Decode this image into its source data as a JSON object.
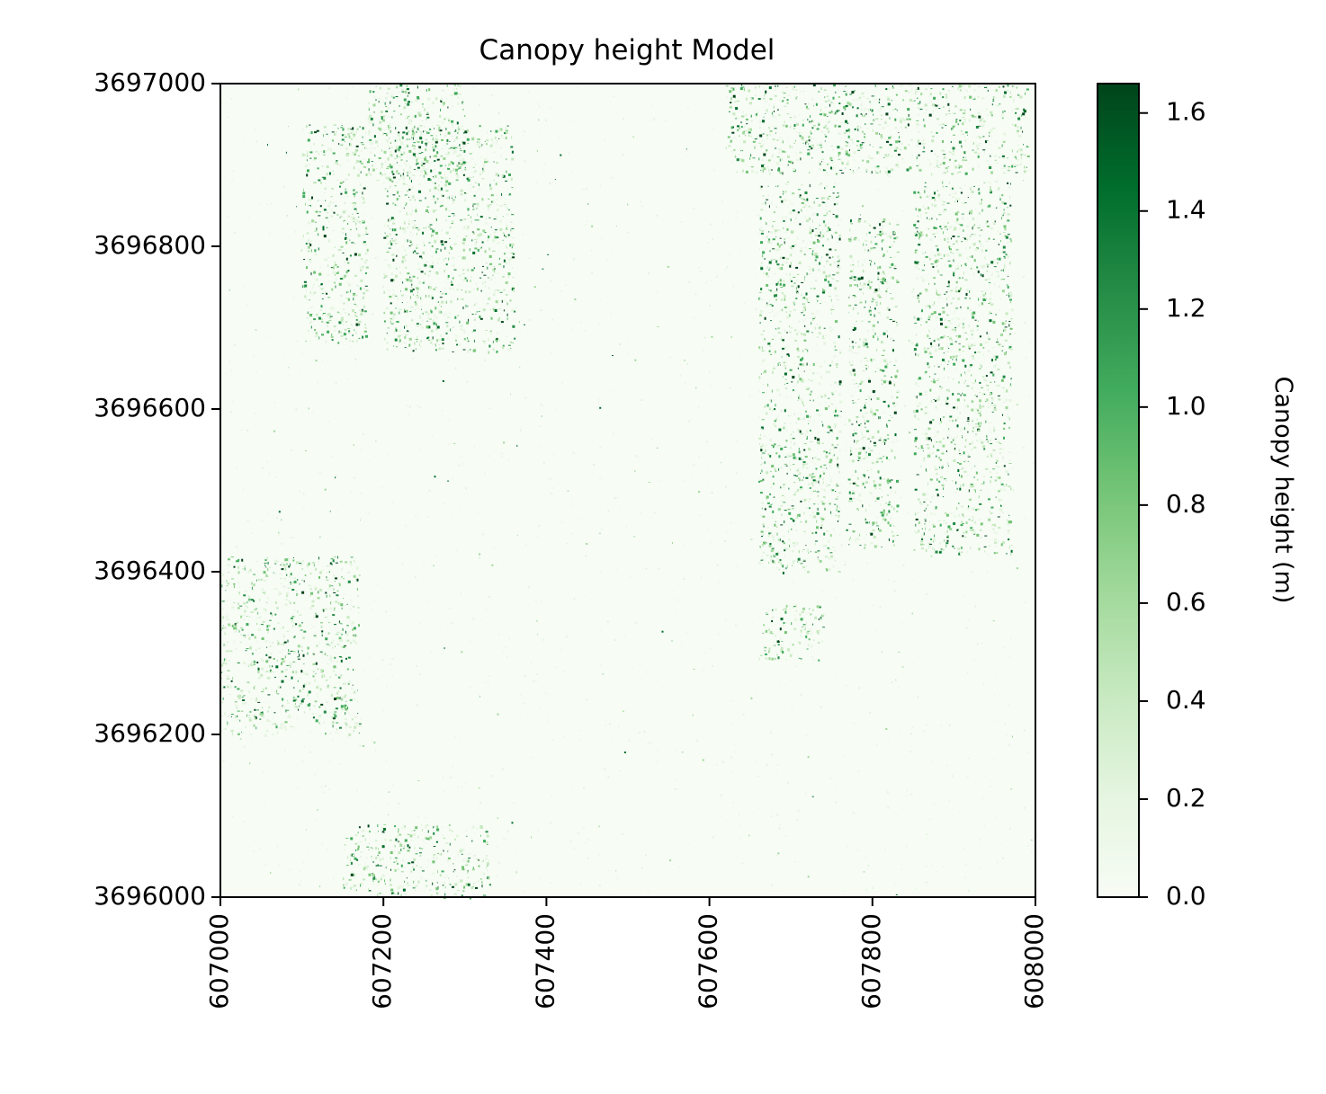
{
  "chart_data": {
    "type": "heatmap",
    "title": "Canopy height Model",
    "xlabel": "",
    "ylabel": "",
    "xlim": [
      607000,
      608000
    ],
    "ylim": [
      3696000,
      3697000
    ],
    "x_ticks": [
      "607000",
      "607200",
      "607400",
      "607600",
      "607800",
      "608000"
    ],
    "y_ticks": [
      "3696000",
      "3696200",
      "3696400",
      "3696600",
      "3696800",
      "3697000"
    ],
    "colormap": "Greens",
    "colormap_stops": [
      "#f7fcf5",
      "#e5f5e0",
      "#c7e9c0",
      "#a1d99b",
      "#74c476",
      "#41ab5d",
      "#238b45",
      "#006d2c",
      "#00441b"
    ],
    "colorbar": {
      "label": "Canopy height (m)",
      "min": 0.0,
      "max": 1.66,
      "ticks": [
        "0.0",
        "0.2",
        "0.4",
        "0.6",
        "0.8",
        "1.0",
        "1.2",
        "1.4",
        "1.6"
      ]
    },
    "vegetated_regions": [
      {
        "x": [
          607100,
          607180
        ],
        "y": [
          3696680,
          3696950
        ]
      },
      {
        "x": [
          607200,
          607360
        ],
        "y": [
          3696670,
          3696950
        ]
      },
      {
        "x": [
          607180,
          607300
        ],
        "y": [
          3696880,
          3697000
        ]
      },
      {
        "x": [
          607000,
          607170
        ],
        "y": [
          3696200,
          3696420
        ]
      },
      {
        "x": [
          607660,
          607760
        ],
        "y": [
          3696400,
          3696880
        ]
      },
      {
        "x": [
          607770,
          607830
        ],
        "y": [
          3696430,
          3696840
        ]
      },
      {
        "x": [
          607850,
          607970
        ],
        "y": [
          3696420,
          3696880
        ]
      },
      {
        "x": [
          607620,
          607990
        ],
        "y": [
          3696890,
          3697000
        ]
      },
      {
        "x": [
          607660,
          607740
        ],
        "y": [
          3696290,
          3696360
        ]
      },
      {
        "x": [
          607150,
          607330
        ],
        "y": [
          3696000,
          3696090
        ]
      }
    ]
  }
}
